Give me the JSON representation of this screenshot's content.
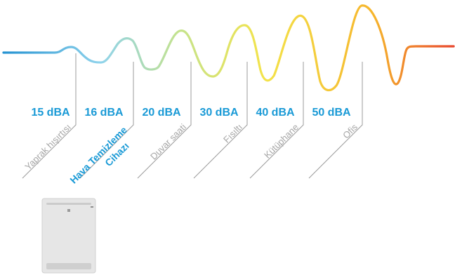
{
  "levels": [
    {
      "value": "15 dBA",
      "label": "Yaprak hışırtısı",
      "highlight": false
    },
    {
      "value": "16 dBA",
      "label": "Hava Temizleme Cihazı",
      "label_lines": [
        "Hava Temizleme",
        "Cihazı"
      ],
      "highlight": true
    },
    {
      "value": "20 dBA",
      "label": "Duvar saati",
      "highlight": false
    },
    {
      "value": "30 dBA",
      "label": "Fısıltı",
      "highlight": false
    },
    {
      "value": "40 dBA",
      "label": "Kütüphane",
      "highlight": false
    },
    {
      "value": "50 dBA",
      "label": "Ofis",
      "highlight": false
    }
  ],
  "colors": {
    "value_text": "#1a9ad6",
    "highlight_text": "#1a9ad6",
    "label_text": "#a6a6a6",
    "divider": "#9b9b9b",
    "wave_gradient": [
      "#1f8fd0",
      "#8fd3ec",
      "#c6e38a",
      "#f3e34a",
      "#f6b52c",
      "#e8452c"
    ]
  },
  "device": {
    "icon": "air-purifier-icon"
  }
}
